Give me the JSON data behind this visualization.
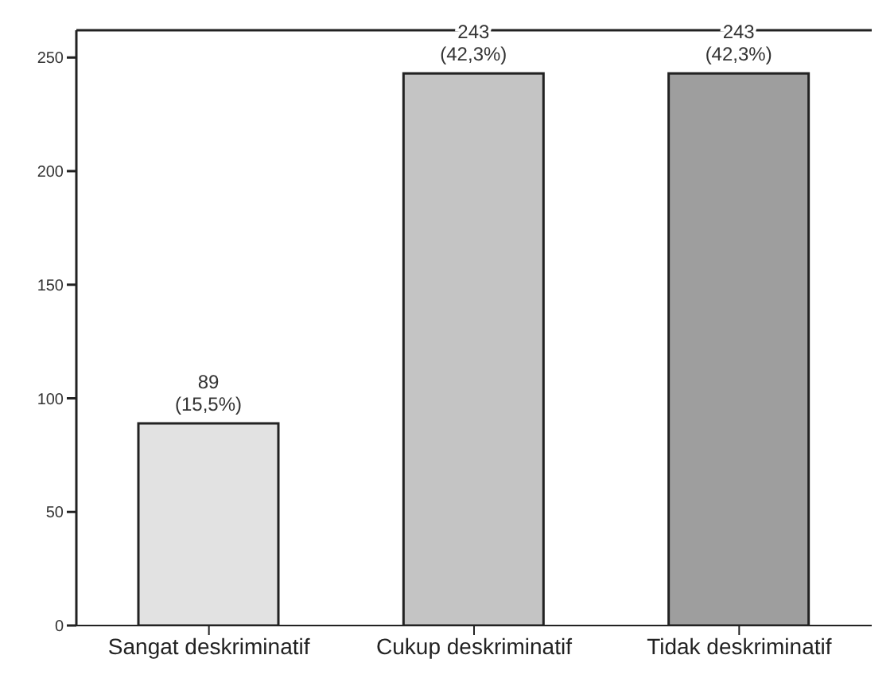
{
  "chart_data": {
    "type": "bar",
    "categories": [
      "Sangat deskriminatif",
      "Cukup deskriminatif",
      "Tidak deskriminatif"
    ],
    "values": [
      89,
      243,
      243
    ],
    "colors": [
      "#e2e2e2",
      "#c4c4c4",
      "#9e9e9e"
    ],
    "value_labels": [
      "89 (15,5%)",
      "243 (42,3%)",
      "243 (42,3%)"
    ],
    "ylim": [
      0,
      262
    ],
    "yticks": [
      0,
      50,
      100,
      150,
      200,
      250
    ],
    "grid": false,
    "legend": false
  }
}
